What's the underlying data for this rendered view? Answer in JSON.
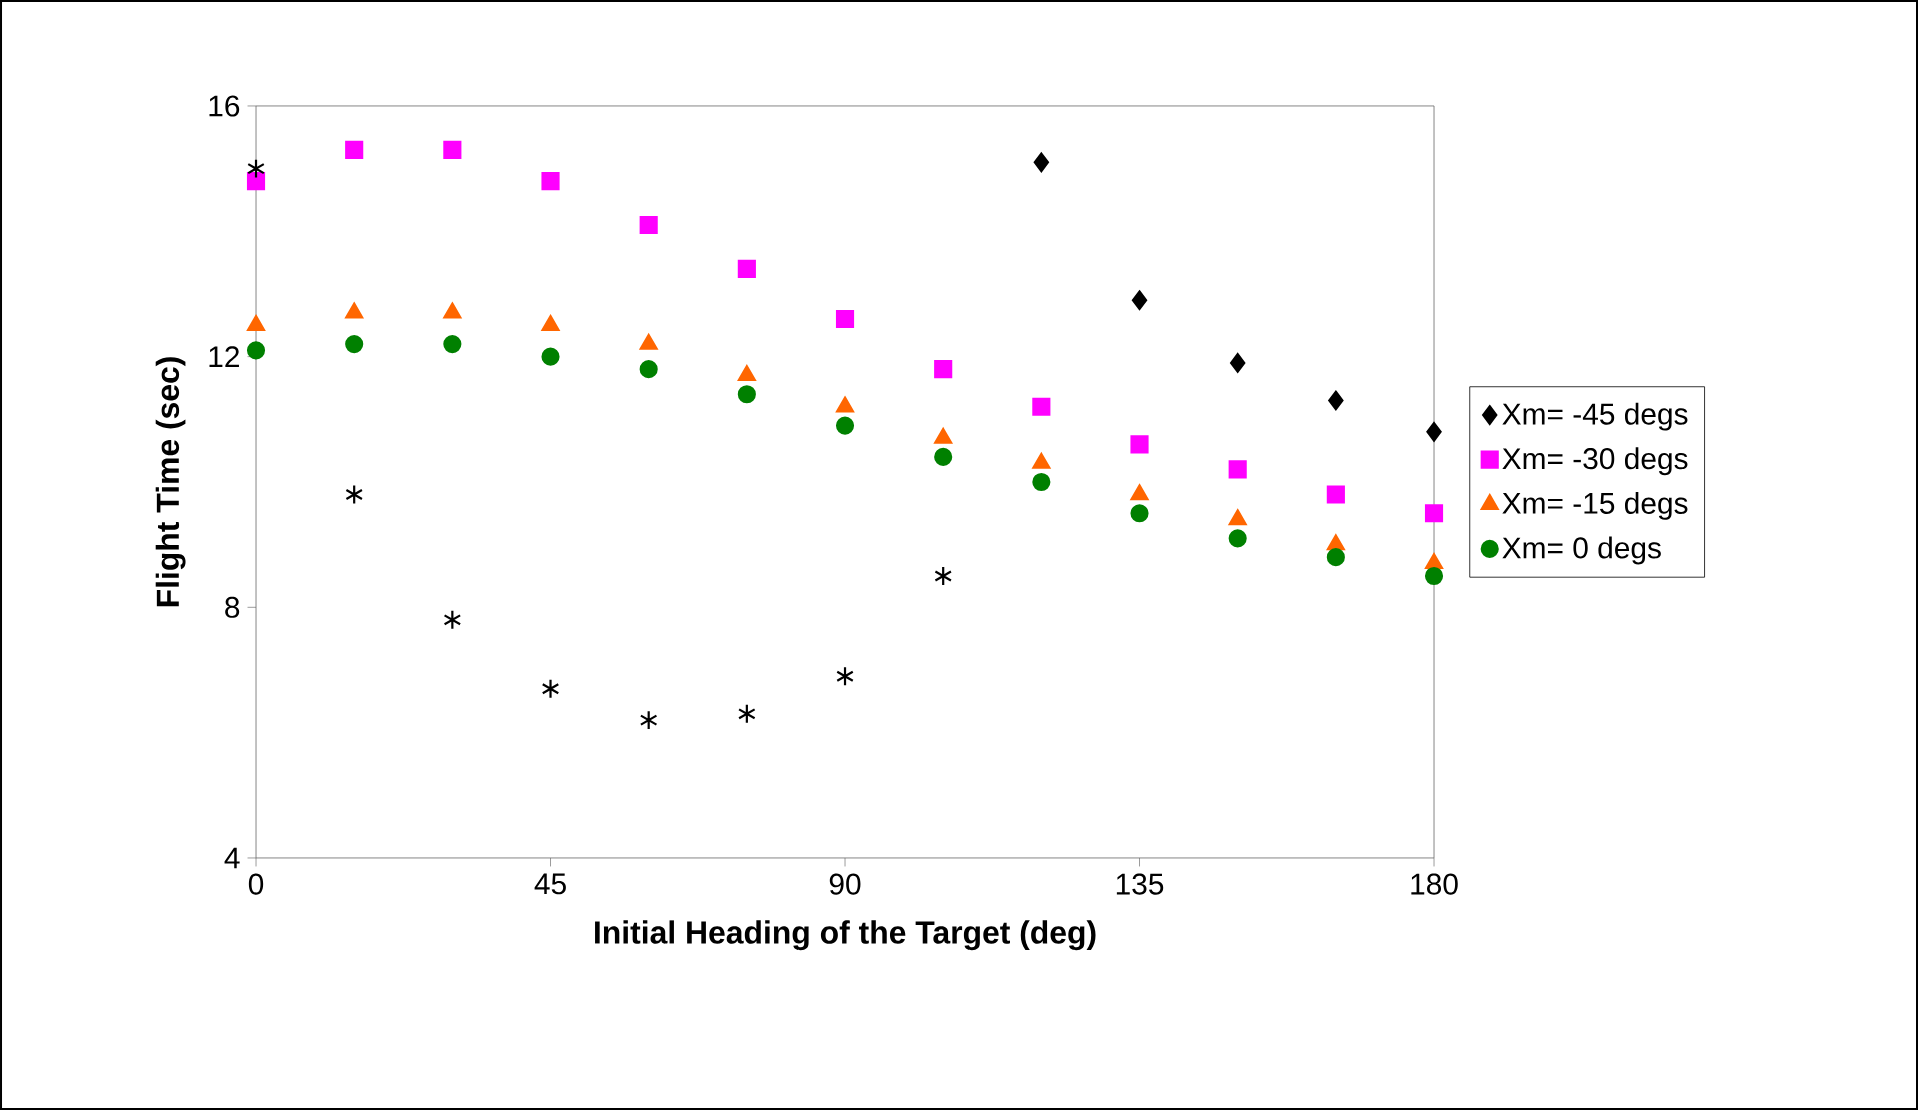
{
  "chart_data": {
    "type": "scatter",
    "xlabel": "Initial Heading of the Target (deg)",
    "ylabel": "Flight Time (sec)",
    "xlim": [
      0,
      180
    ],
    "xticks": [
      0,
      45,
      90,
      135,
      180
    ],
    "ylim": [
      4,
      16
    ],
    "yticks": [
      4,
      8,
      12,
      16
    ],
    "grid": false,
    "legend": "right",
    "series": [
      {
        "name": "Xm= -45 degs",
        "color": "#000000",
        "marker": "diamond",
        "x": [
          120,
          135,
          150,
          165,
          180
        ],
        "values": [
          15.1,
          12.9,
          11.9,
          11.3,
          10.8
        ]
      },
      {
        "name": "Xm= -30 degs",
        "color": "#ff00ff",
        "marker": "square",
        "x": [
          0,
          15,
          30,
          45,
          60,
          75,
          90,
          105,
          120,
          135,
          150,
          165,
          180
        ],
        "values": [
          14.8,
          15.3,
          15.3,
          14.8,
          14.1,
          13.4,
          12.6,
          11.8,
          11.2,
          10.6,
          10.2,
          9.8,
          9.5
        ]
      },
      {
        "name": "Xm= -15 degs",
        "color": "#ff6600",
        "marker": "triangle",
        "x": [
          0,
          15,
          30,
          45,
          60,
          75,
          90,
          105,
          120,
          135,
          150,
          165,
          180
        ],
        "values": [
          12.5,
          12.7,
          12.7,
          12.5,
          12.2,
          11.7,
          11.2,
          10.7,
          10.3,
          9.8,
          9.4,
          9.0,
          8.7
        ]
      },
      {
        "name": "Xm= 0 degs",
        "color": "#008000",
        "marker": "circle",
        "x": [
          0,
          15,
          30,
          45,
          60,
          75,
          90,
          105,
          120,
          135,
          150,
          165,
          180
        ],
        "values": [
          12.1,
          12.2,
          12.2,
          12.0,
          11.8,
          11.4,
          10.9,
          10.4,
          10.0,
          9.5,
          9.1,
          8.8,
          8.5
        ]
      },
      {
        "color": "#000000",
        "marker": "cross",
        "x": [
          0,
          15,
          30,
          45,
          60,
          75,
          90,
          105
        ],
        "values": [
          15.0,
          9.8,
          7.8,
          6.7,
          6.2,
          6.3,
          6.9,
          8.5
        ]
      }
    ]
  }
}
